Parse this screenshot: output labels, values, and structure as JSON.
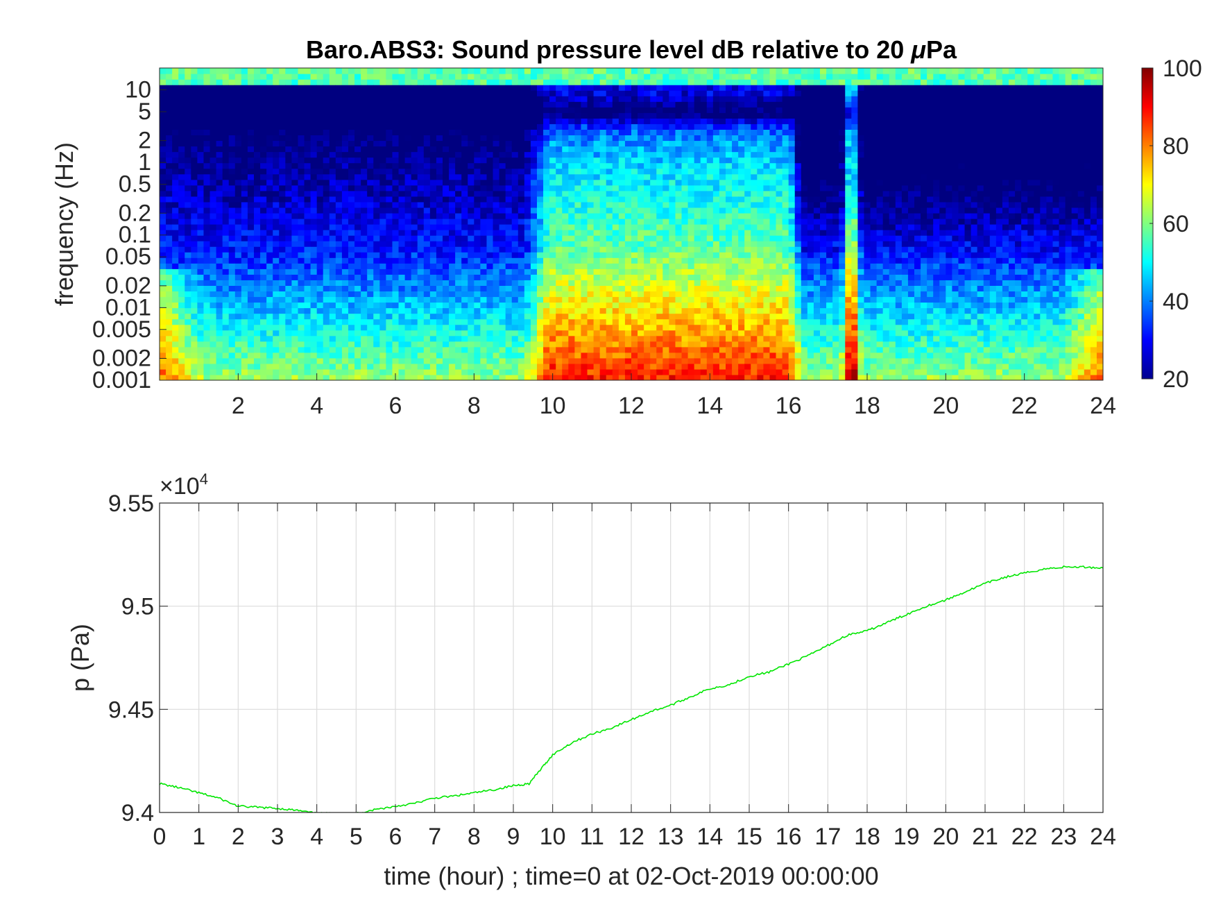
{
  "chart_data": [
    {
      "type": "heatmap",
      "title": "Baro.ABS3: Sound pressure level dB relative to 20 μPa",
      "title_prefix": "Baro.ABS3: Sound pressure level dB relative to 20 ",
      "title_mu": "μ",
      "title_suffix": "Pa",
      "ylabel": "frequency (Hz)",
      "xlabel": "",
      "x_range": [
        0,
        24
      ],
      "x_ticks": [
        2,
        4,
        6,
        8,
        10,
        12,
        14,
        16,
        18,
        20,
        22,
        24
      ],
      "y_scale": "log",
      "y_range": [
        0.001,
        20
      ],
      "y_ticks": [
        0.001,
        0.002,
        0.005,
        0.01,
        0.02,
        0.05,
        0.1,
        0.2,
        0.5,
        1,
        2,
        5,
        10
      ],
      "y_tick_labels": [
        "0.001",
        "0.002",
        "0.005",
        "0.01",
        "0.02",
        "0.05",
        "0.1",
        "0.2",
        "0.5",
        "1",
        "2",
        "5",
        "10"
      ],
      "colormap": "jet",
      "colorbar": {
        "range": [
          20,
          100
        ],
        "ticks": [
          20,
          40,
          60,
          80,
          100
        ]
      },
      "features": [
        {
          "time_hour": 0.0,
          "note": "high level at lowest frequencies near start"
        },
        {
          "time_hour": 9.8,
          "note": "broadband high level burst"
        },
        {
          "time_hour": 17.6,
          "note": "narrow broadband spike"
        },
        {
          "time_hour": 24.0,
          "note": "high level at lowest frequencies near end"
        }
      ],
      "grid": false
    },
    {
      "type": "line",
      "title": "",
      "xlabel": "time (hour) ; time=0 at 02-Oct-2019 00:00:00",
      "ylabel": "p (Pa)",
      "y_exponent_label": "×10",
      "y_exponent_power": "4",
      "xlim": [
        0,
        24
      ],
      "ylim": [
        94000,
        95500
      ],
      "x_ticks": [
        0,
        1,
        2,
        3,
        4,
        5,
        6,
        7,
        8,
        9,
        10,
        11,
        12,
        13,
        14,
        15,
        16,
        17,
        18,
        19,
        20,
        21,
        22,
        23,
        24
      ],
      "y_ticks": [
        94000,
        94500,
        95000,
        95500
      ],
      "y_tick_labels": [
        "9.4",
        "9.45",
        "9.5",
        "9.55"
      ],
      "grid": true,
      "line_color": "#00e600",
      "series": [
        {
          "x": [
            0,
            0.5,
            1,
            1.5,
            2,
            2.5,
            3,
            3.5,
            4,
            4.5,
            5,
            5.5,
            6,
            6.5,
            7,
            7.5,
            8,
            8.5,
            9,
            9.4,
            9.7,
            10,
            10.5,
            11,
            11.5,
            12,
            12.5,
            13,
            13.5,
            14,
            14.5,
            15,
            15.5,
            16,
            16.5,
            17,
            17.5,
            18,
            18.5,
            19,
            19.5,
            20,
            20.5,
            21,
            21.5,
            22,
            22.5,
            23,
            23.5,
            24
          ],
          "y": [
            94140,
            94120,
            94095,
            94070,
            94030,
            94025,
            94020,
            94010,
            93995,
            93995,
            93995,
            94015,
            94030,
            94045,
            94070,
            94080,
            94095,
            94110,
            94130,
            94140,
            94210,
            94280,
            94340,
            94380,
            94410,
            94450,
            94490,
            94520,
            94560,
            94600,
            94620,
            94660,
            94680,
            94720,
            94760,
            94810,
            94860,
            94880,
            94920,
            94960,
            95000,
            95030,
            95070,
            95110,
            95140,
            95160,
            95180,
            95190,
            95190,
            95185
          ]
        }
      ]
    }
  ]
}
